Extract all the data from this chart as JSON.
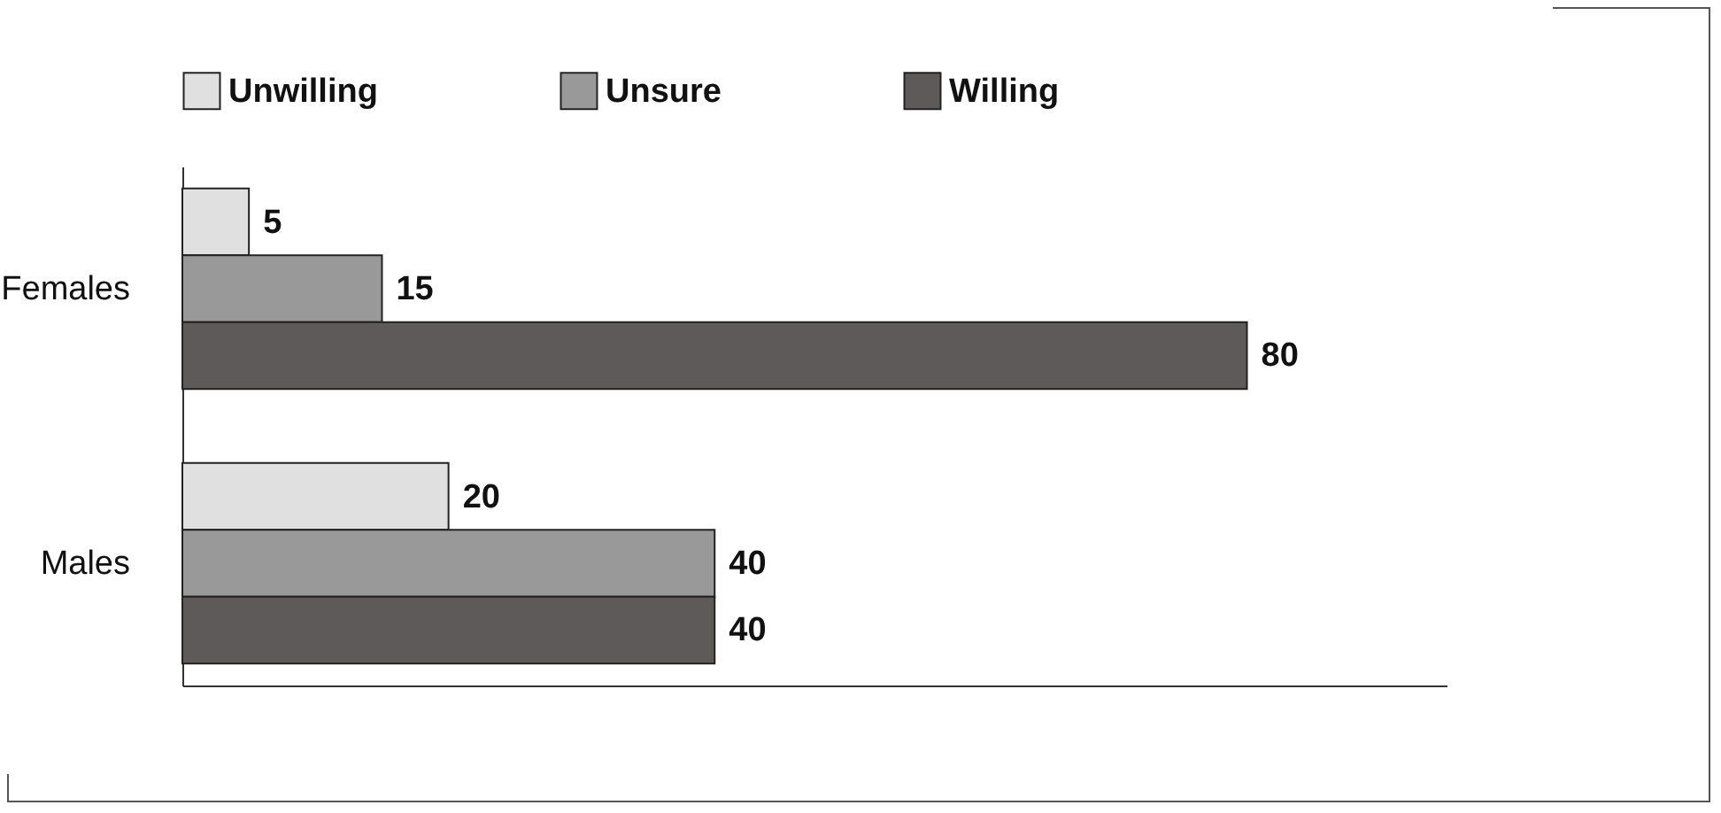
{
  "chart_data": {
    "type": "bar",
    "orientation": "horizontal",
    "categories": [
      "Females",
      "Males"
    ],
    "series": [
      {
        "name": "Unwilling",
        "color": "#e0e0e0",
        "values": [
          5,
          20
        ]
      },
      {
        "name": "Unsure",
        "color": "#999999",
        "values": [
          15,
          40
        ]
      },
      {
        "name": "Willing",
        "color": "#5f5a5a",
        "values": [
          80,
          40
        ]
      }
    ],
    "xlim": [
      0,
      95
    ],
    "data_labels": true,
    "legend": "top",
    "tick_labels": "y",
    "grid": false
  }
}
